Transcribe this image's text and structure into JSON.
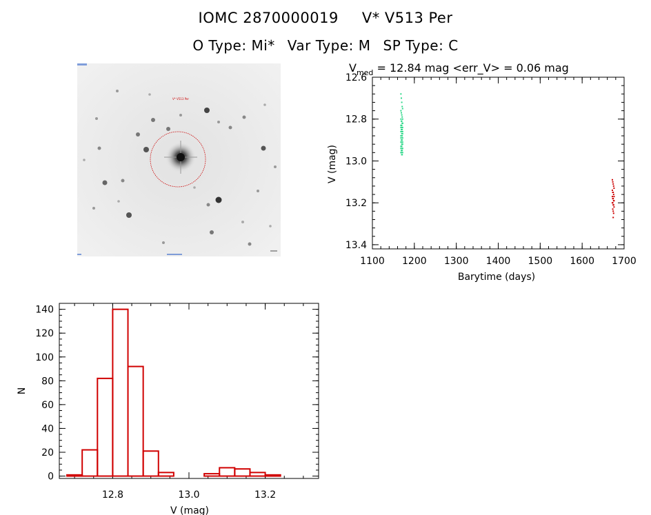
{
  "header": {
    "id_label": "IOMC 2870000019",
    "name": "V* V513 Per",
    "otype": "O Type: Mi*",
    "vartype": "Var Type: M",
    "sptype": "SP Type: C"
  },
  "finder": {
    "label": "V* V513 Per"
  },
  "lightcurve": {
    "title_prefix": "V",
    "title_sub": "med",
    "title_rest": " = 12.84 mag <err_V> = 0.06 mag",
    "xlabel": "Barytime (days)",
    "ylabel": "V (mag)"
  },
  "histogram": {
    "xlabel": "V (mag)",
    "ylabel": "N"
  },
  "colors": {
    "green": "#2ed88a",
    "red": "#cc0000",
    "hist_red": "#d00000"
  },
  "chart_data": [
    {
      "type": "scatter",
      "title": "V_med = 12.84 mag <err_V> = 0.06 mag",
      "xlabel": "Barytime (days)",
      "ylabel": "V (mag)",
      "xlim": [
        1100,
        1700
      ],
      "ylim": [
        13.42,
        12.6
      ],
      "xticks": [
        "1100",
        "1200",
        "1300",
        "1400",
        "1500",
        "1600",
        "1700"
      ],
      "yticks": [
        "12.6",
        "12.8",
        "13.0",
        "13.2",
        "13.4"
      ],
      "series": [
        {
          "color": "#2ed88a",
          "x": [
            1168,
            1169,
            1170,
            1171,
            1172,
            1168,
            1169,
            1170,
            1171,
            1172,
            1168,
            1169,
            1170,
            1171,
            1172,
            1168,
            1169,
            1170,
            1171,
            1172,
            1168,
            1169,
            1170,
            1171,
            1172,
            1168,
            1169,
            1170,
            1171,
            1172,
            1168,
            1169,
            1170,
            1171,
            1172,
            1168,
            1169,
            1170,
            1171,
            1172,
            1168,
            1169,
            1170,
            1171,
            1172,
            1168,
            1169,
            1170,
            1171,
            1172,
            1168,
            1169,
            1170,
            1171,
            1172,
            1168,
            1169,
            1170,
            1171,
            1172,
            1169,
            1170,
            1171,
            1170
          ],
          "y": [
            12.68,
            12.7,
            12.72,
            12.74,
            12.75,
            12.76,
            12.77,
            12.78,
            12.79,
            12.8,
            12.8,
            12.81,
            12.81,
            12.82,
            12.82,
            12.83,
            12.83,
            12.83,
            12.84,
            12.84,
            12.84,
            12.85,
            12.85,
            12.85,
            12.86,
            12.86,
            12.86,
            12.87,
            12.87,
            12.87,
            12.88,
            12.88,
            12.88,
            12.89,
            12.89,
            12.89,
            12.9,
            12.9,
            12.9,
            12.91,
            12.91,
            12.91,
            12.92,
            12.92,
            12.92,
            12.93,
            12.93,
            12.93,
            12.94,
            12.94,
            12.94,
            12.95,
            12.95,
            12.95,
            12.96,
            12.96,
            12.96,
            12.97,
            12.97,
            12.82,
            12.84,
            12.86,
            12.88,
            12.9
          ]
        },
        {
          "color": "#cc0000",
          "x": [
            1672,
            1673,
            1674,
            1675,
            1676,
            1672,
            1673,
            1674,
            1675,
            1676,
            1672,
            1673,
            1674,
            1675,
            1676,
            1672,
            1673,
            1674,
            1675,
            1676,
            1673,
            1674,
            1675,
            1674
          ],
          "y": [
            13.09,
            13.1,
            13.11,
            13.12,
            13.13,
            13.14,
            13.15,
            13.15,
            13.16,
            13.17,
            13.17,
            13.18,
            13.18,
            13.19,
            13.19,
            13.2,
            13.2,
            13.21,
            13.21,
            13.22,
            13.23,
            13.24,
            13.25,
            13.27
          ]
        }
      ]
    },
    {
      "type": "bar",
      "title": "",
      "xlabel": "V (mag)",
      "ylabel": "N",
      "xlim": [
        12.66,
        13.34
      ],
      "ylim": [
        -2,
        145
      ],
      "xticks": [
        "12.8",
        "13.0",
        "13.2"
      ],
      "yticks": [
        "0",
        "20",
        "40",
        "60",
        "80",
        "100",
        "120",
        "140"
      ],
      "bin_width": 0.04,
      "bin_starts": [
        12.68,
        12.72,
        12.76,
        12.8,
        12.84,
        12.88,
        12.92,
        12.96,
        13.0,
        13.04,
        13.08,
        13.12,
        13.16,
        13.2,
        13.24
      ],
      "values": [
        1,
        22,
        82,
        140,
        92,
        21,
        3,
        0,
        0,
        2,
        7,
        6,
        3,
        1,
        0
      ]
    }
  ]
}
